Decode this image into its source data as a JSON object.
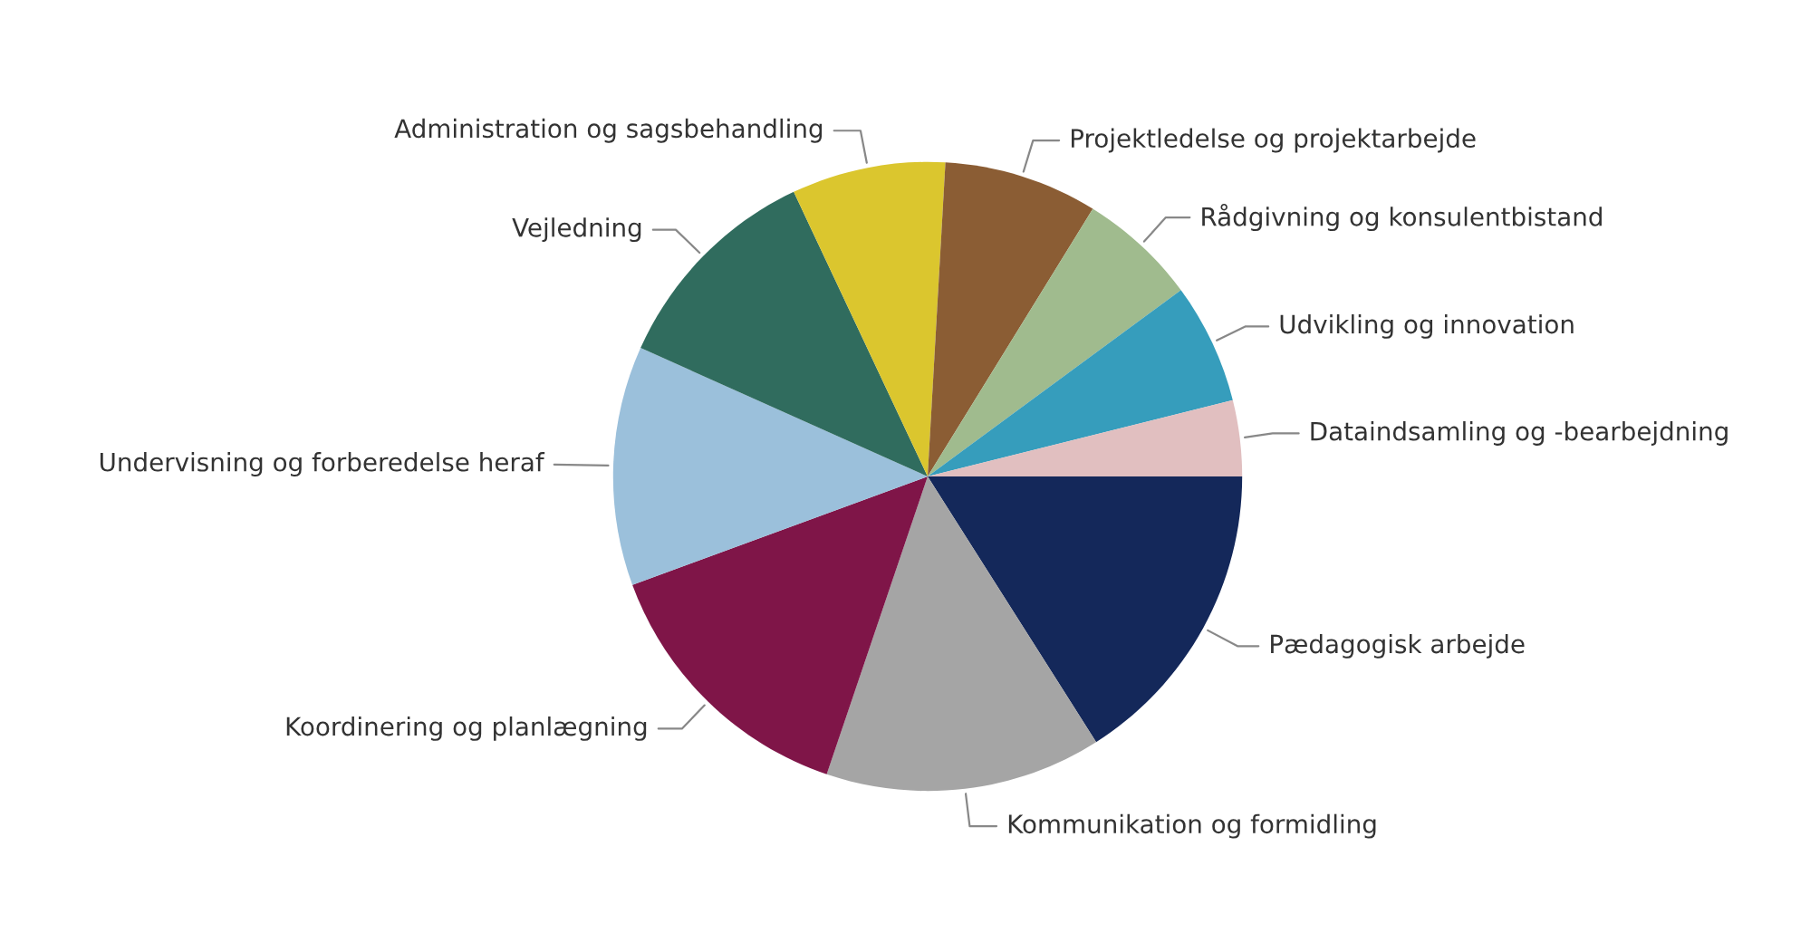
{
  "chart_data": {
    "type": "pie",
    "categories": [
      "Pædagogisk arbejde",
      "Kommunikation og formidling",
      "Koordinering og planlægning",
      "Undervisning og forberedelse heraf",
      "Vejledning",
      "Administration og sagsbehandling",
      "Projektledelse og projektarbejde",
      "Rådgivning og konsulentbistand",
      "Udvikling og innovation",
      "Dataindsamling og -bearbejdning"
    ],
    "values": [
      16.0,
      14.2,
      14.2,
      12.3,
      11.3,
      7.9,
      7.9,
      6.1,
      6.2,
      3.9
    ],
    "colors": [
      "#14285a",
      "#a5a5a5",
      "#7f1548",
      "#9bc0db",
      "#306c5e",
      "#dbc62e",
      "#8b5d34",
      "#a0bb8e",
      "#369dbc",
      "#e1bfc0"
    ],
    "legend": false
  }
}
